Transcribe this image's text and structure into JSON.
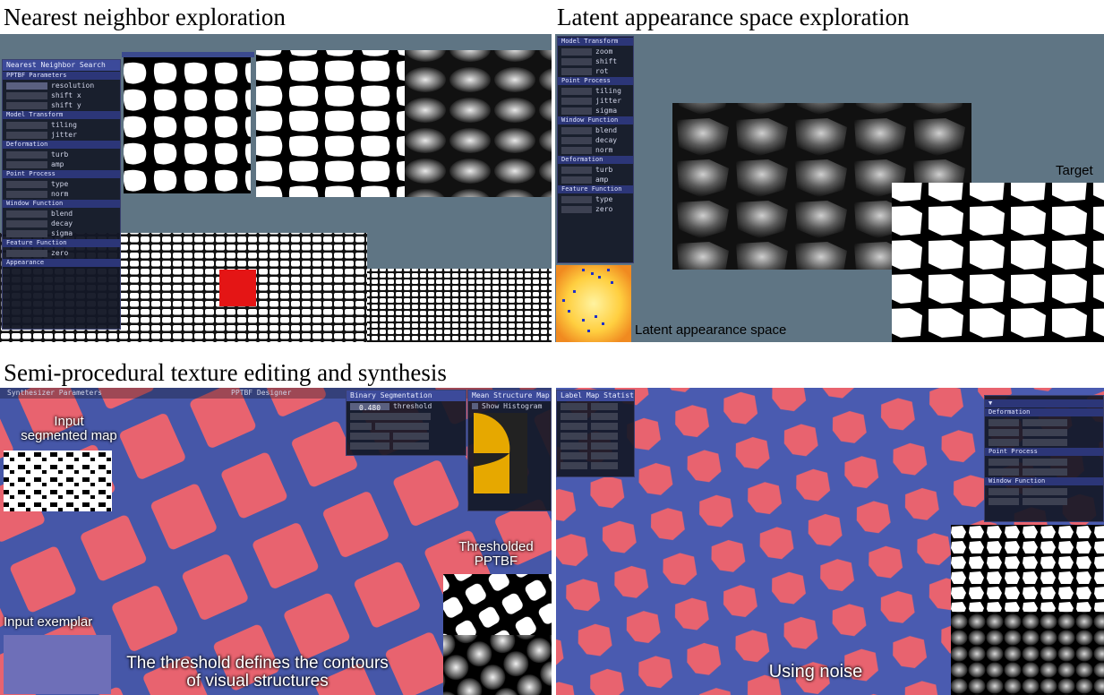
{
  "titles": {
    "nearest": "Nearest neighbor exploration",
    "latent": "Latent appearance space exploration",
    "semi": "Semi-procedural texture editing and synthesis"
  },
  "latent_panel": {
    "target_label": "Target",
    "space_label": "Latent appearance space"
  },
  "semi_left": {
    "input_segmented_label": "Input\nsegmented map",
    "input_exemplar_label": "Input exemplar",
    "thresholded_label": "Thresholded\nPPTBF",
    "threshold_caption": "The threshold defines the contours\nof visual structures",
    "ui_synth": "Synthesizer Parameters",
    "ui_pptbf": "PPTBF Designer",
    "ui_binary": "Binary Segmentation",
    "ui_structure": "Mean Structure Map",
    "ui_histogram": "Show Histogram",
    "threshold_label": "threshold",
    "threshold_value": "0.480"
  },
  "semi_right": {
    "noise_caption": "Using noise",
    "ui_label_map": "Label Map Statistics",
    "ui_deform": "Deformation",
    "ui_point": "Point Process",
    "ui_window": "Window Function"
  },
  "nn_ui": {
    "title": "Nearest Neighbor Search",
    "sections": [
      "PPTBF Parameters",
      "Model Transform",
      "Deformation",
      "Point Process",
      "Window Function",
      "Feature Function",
      "Appearance"
    ]
  },
  "latent_ui": {
    "sections": [
      "Model Transform",
      "Point Process",
      "Window Function",
      "Deformation",
      "Feature Function"
    ]
  },
  "colors": {
    "slate": "#5f7584",
    "red_tile": "#e86070",
    "blue_metal": "#4a5bb0",
    "ui_header": "#3c4a9a"
  }
}
